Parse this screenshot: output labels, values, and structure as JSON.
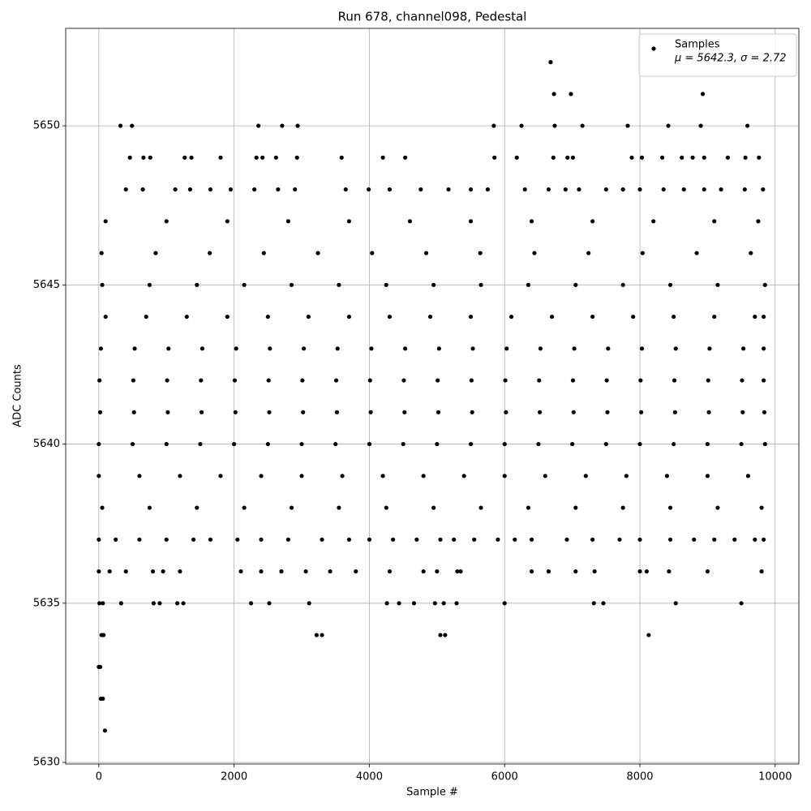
{
  "chart_data": {
    "type": "scatter",
    "title": "Run 678, channel098, Pedestal",
    "xlabel": "Sample #",
    "ylabel": "ADC Counts",
    "xlim": [
      -490,
      10350
    ],
    "ylim": [
      5629.95,
      5653.06
    ],
    "xticks": [
      0,
      2000,
      4000,
      6000,
      8000,
      10000
    ],
    "yticks": [
      5630,
      5635,
      5640,
      5645,
      5650
    ],
    "grid": true,
    "legend": "upper right",
    "legend_note": "μ = 5642.3, σ = 2.72",
    "x": [
      0,
      20,
      30,
      60,
      90,
      40,
      70,
      10,
      60,
      330,
      3300,
      3220,
      5050,
      5120,
      8130,
      6680,
      6730,
      6980,
      8930,
      320,
      490,
      2360,
      2710,
      2940,
      5840,
      6250,
      6740,
      7150,
      7820,
      8420,
      8900,
      9590,
      810,
      900,
      1160,
      1250,
      2250,
      2520,
      3110,
      4260,
      4440,
      4660,
      4970,
      5100,
      5290,
      6000,
      7320,
      7460,
      8530,
      9500,
      0,
      160,
      400,
      800,
      950,
      1200,
      2100,
      2400,
      2700,
      3060,
      3420,
      3800,
      4300,
      4800,
      5000,
      5300,
      5350,
      6400,
      6650,
      7050,
      7330,
      8000,
      8100,
      8430,
      9000,
      9800,
      0,
      250,
      600,
      1000,
      1400,
      1650,
      2050,
      2400,
      2800,
      3300,
      3700,
      4000,
      4350,
      4700,
      5050,
      5250,
      5550,
      5900,
      6150,
      6400,
      6920,
      7300,
      7700,
      8000,
      8450,
      8800,
      9100,
      9400,
      9700,
      9830,
      50,
      750,
      1450,
      2150,
      2850,
      3550,
      4250,
      4950,
      5650,
      6350,
      7050,
      7750,
      8450,
      9150,
      9800,
      0,
      600,
      1200,
      1800,
      2400,
      3000,
      3600,
      4200,
      4800,
      5400,
      6000,
      6600,
      7200,
      7800,
      8400,
      9000,
      9600,
      0,
      500,
      1000,
      1500,
      2000,
      2500,
      3000,
      3500,
      4000,
      4500,
      5000,
      5500,
      6000,
      6500,
      7000,
      7500,
      8000,
      8500,
      9000,
      9500,
      9850,
      20,
      520,
      1020,
      1520,
      2020,
      2520,
      3020,
      3520,
      4020,
      4520,
      5020,
      5520,
      6020,
      6520,
      7020,
      7520,
      8020,
      8520,
      9020,
      9520,
      9840,
      10,
      510,
      1010,
      1510,
      2010,
      2510,
      3010,
      3510,
      4010,
      4510,
      5010,
      5510,
      6010,
      6510,
      7010,
      7510,
      8010,
      8510,
      9010,
      9510,
      9830,
      30,
      530,
      1030,
      1530,
      2030,
      2530,
      3030,
      3530,
      4030,
      4530,
      5030,
      5530,
      6030,
      6530,
      7030,
      7530,
      8030,
      8530,
      9030,
      9530,
      9830,
      100,
      700,
      1300,
      1900,
      2500,
      3100,
      3700,
      4300,
      4900,
      5500,
      6100,
      6700,
      7300,
      7900,
      8500,
      9100,
      9700,
      9830,
      50,
      750,
      1450,
      2150,
      2850,
      3550,
      4250,
      4950,
      5650,
      6350,
      7050,
      7750,
      8450,
      9150,
      9850,
      40,
      840,
      1640,
      2440,
      3240,
      4040,
      4840,
      5640,
      6440,
      7240,
      8040,
      8840,
      9640,
      100,
      1000,
      1900,
      2800,
      3700,
      4600,
      5500,
      6400,
      7300,
      8200,
      9100,
      9750,
      400,
      650,
      1130,
      1350,
      1650,
      1950,
      2300,
      2650,
      2900,
      3650,
      3990,
      4300,
      4760,
      5170,
      5500,
      5750,
      6300,
      6650,
      6900,
      7100,
      7500,
      7750,
      8000,
      8350,
      8650,
      8950,
      9200,
      9550,
      9820,
      460,
      660,
      760,
      1270,
      1370,
      1800,
      2330,
      2420,
      2620,
      2930,
      3590,
      4200,
      4530,
      5850,
      6180,
      6720,
      6930,
      7010,
      7880,
      8030,
      8330,
      8620,
      8780,
      8950,
      9300,
      9560,
      9760
    ],
    "series": [
      {
        "name": "Samples",
        "color": "#000000",
        "values": [
          5633,
          5633,
          5632,
          5632,
          5631,
          5634,
          5634,
          5635,
          5635,
          5635,
          5634,
          5634,
          5634,
          5634,
          5634,
          5652,
          5651,
          5651,
          5651,
          5650,
          5650,
          5650,
          5650,
          5650,
          5650,
          5650,
          5650,
          5650,
          5650,
          5650,
          5650,
          5650,
          5635,
          5635,
          5635,
          5635,
          5635,
          5635,
          5635,
          5635,
          5635,
          5635,
          5635,
          5635,
          5635,
          5635,
          5635,
          5635,
          5635,
          5635,
          5636,
          5636,
          5636,
          5636,
          5636,
          5636,
          5636,
          5636,
          5636,
          5636,
          5636,
          5636,
          5636,
          5636,
          5636,
          5636,
          5636,
          5636,
          5636,
          5636,
          5636,
          5636,
          5636,
          5636,
          5636,
          5636,
          5637,
          5637,
          5637,
          5637,
          5637,
          5637,
          5637,
          5637,
          5637,
          5637,
          5637,
          5637,
          5637,
          5637,
          5637,
          5637,
          5637,
          5637,
          5637,
          5637,
          5637,
          5637,
          5637,
          5637,
          5637,
          5637,
          5637,
          5637,
          5637,
          5637,
          5638,
          5638,
          5638,
          5638,
          5638,
          5638,
          5638,
          5638,
          5638,
          5638,
          5638,
          5638,
          5638,
          5638,
          5638,
          5639,
          5639,
          5639,
          5639,
          5639,
          5639,
          5639,
          5639,
          5639,
          5639,
          5639,
          5639,
          5639,
          5639,
          5639,
          5639,
          5639,
          5640,
          5640,
          5640,
          5640,
          5640,
          5640,
          5640,
          5640,
          5640,
          5640,
          5640,
          5640,
          5640,
          5640,
          5640,
          5640,
          5640,
          5640,
          5640,
          5640,
          5640,
          5641,
          5641,
          5641,
          5641,
          5641,
          5641,
          5641,
          5641,
          5641,
          5641,
          5641,
          5641,
          5641,
          5641,
          5641,
          5641,
          5641,
          5641,
          5641,
          5641,
          5641,
          5642,
          5642,
          5642,
          5642,
          5642,
          5642,
          5642,
          5642,
          5642,
          5642,
          5642,
          5642,
          5642,
          5642,
          5642,
          5642,
          5642,
          5642,
          5642,
          5642,
          5642,
          5643,
          5643,
          5643,
          5643,
          5643,
          5643,
          5643,
          5643,
          5643,
          5643,
          5643,
          5643,
          5643,
          5643,
          5643,
          5643,
          5643,
          5643,
          5643,
          5643,
          5643,
          5644,
          5644,
          5644,
          5644,
          5644,
          5644,
          5644,
          5644,
          5644,
          5644,
          5644,
          5644,
          5644,
          5644,
          5644,
          5644,
          5644,
          5644,
          5645,
          5645,
          5645,
          5645,
          5645,
          5645,
          5645,
          5645,
          5645,
          5645,
          5645,
          5645,
          5645,
          5645,
          5645,
          5646,
          5646,
          5646,
          5646,
          5646,
          5646,
          5646,
          5646,
          5646,
          5646,
          5646,
          5646,
          5646,
          5647,
          5647,
          5647,
          5647,
          5647,
          5647,
          5647,
          5647,
          5647,
          5647,
          5647,
          5647,
          5648,
          5648,
          5648,
          5648,
          5648,
          5648,
          5648,
          5648,
          5648,
          5648,
          5648,
          5648,
          5648,
          5648,
          5648,
          5648,
          5648,
          5648,
          5648,
          5648,
          5648,
          5648,
          5648,
          5648,
          5648,
          5648,
          5648,
          5648,
          5648,
          5649,
          5649,
          5649,
          5649,
          5649,
          5649,
          5649,
          5649,
          5649,
          5649,
          5649,
          5649,
          5649,
          5649,
          5649,
          5649,
          5649,
          5649,
          5649,
          5649,
          5649,
          5649,
          5649,
          5649,
          5649,
          5649,
          5649
        ]
      }
    ]
  }
}
